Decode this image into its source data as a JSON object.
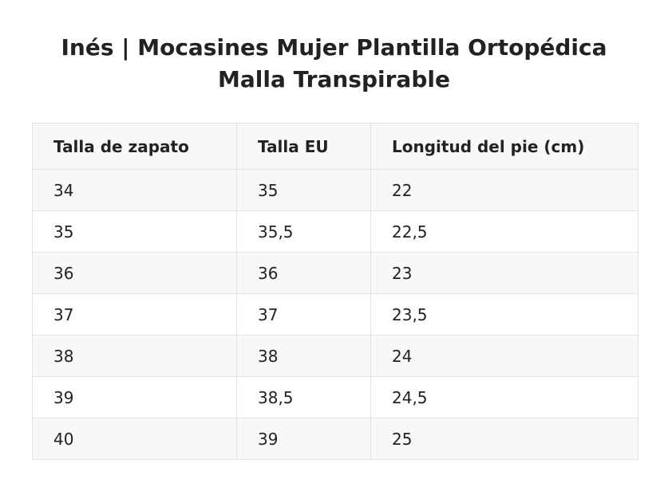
{
  "title": {
    "line1": "Inés | Mocasines Mujer Plantilla Ortopédica",
    "line2": "Malla Transpirable"
  },
  "table": {
    "headers": [
      "Talla de zapato",
      "Talla EU",
      "Longitud del pie (cm)"
    ],
    "rows": [
      [
        "34",
        "35",
        "22"
      ],
      [
        "35",
        "35,5",
        "22,5"
      ],
      [
        "36",
        "36",
        "23"
      ],
      [
        "37",
        "37",
        "23,5"
      ],
      [
        "38",
        "38",
        "24"
      ],
      [
        "39",
        "38,5",
        "24,5"
      ],
      [
        "40",
        "39",
        "25"
      ]
    ]
  }
}
